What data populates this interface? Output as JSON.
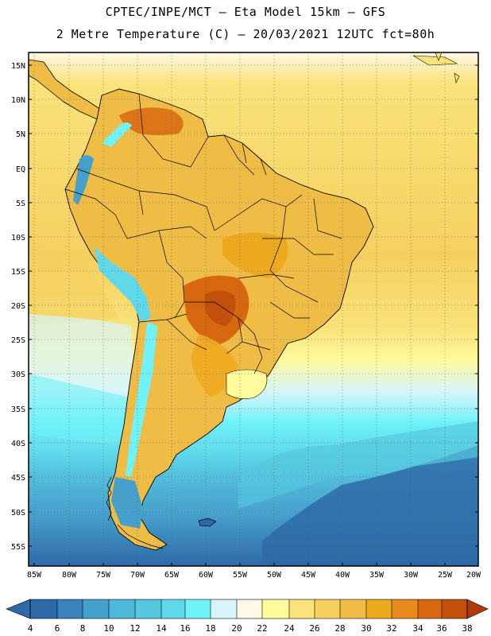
{
  "header": {
    "line1": "CPTEC/INPE/MCT –  Eta Model 15km – GFS",
    "line2": "2 Metre Temperature (C) – 20/03/2021 12UTC fct=80h"
  },
  "axes": {
    "lat_labels": [
      "15N",
      "10N",
      "5N",
      "EQ",
      "5S",
      "10S",
      "15S",
      "20S",
      "25S",
      "30S",
      "35S",
      "40S",
      "45S",
      "50S",
      "55S"
    ],
    "lon_labels": [
      "85W",
      "80W",
      "75W",
      "70W",
      "65W",
      "60W",
      "55W",
      "50W",
      "45W",
      "40W",
      "35W",
      "30W",
      "25W",
      "20W"
    ]
  },
  "colorbar": {
    "labels": [
      "4",
      "6",
      "8",
      "10",
      "12",
      "14",
      "16",
      "18",
      "20",
      "22",
      "24",
      "26",
      "28",
      "30",
      "32",
      "34",
      "36",
      "38"
    ],
    "colors": [
      "#2e6aa8",
      "#3a82bc",
      "#46a0cc",
      "#4fb7d9",
      "#55c8e0",
      "#5fd9ea",
      "#6ff2f8",
      "#d7f5fb",
      "#fff8e6",
      "#fffa9c",
      "#f9e37a",
      "#f5d05f",
      "#efbd45",
      "#eeaa1f",
      "#e8891e",
      "#d86810",
      "#c24f0a",
      "#b23a06"
    ]
  },
  "legend_colors": {
    "ocean_south_deep": "#2e6aa8",
    "ocean_mid": "#46a0cc",
    "ocean_cyan": "#5fd9ea",
    "ocean_light": "#d7f5fb",
    "ocean_warm": "#f9e37a",
    "land_hot": "#d86810",
    "land_warm": "#efbd45",
    "andes_cold": "#46a0cc"
  }
}
